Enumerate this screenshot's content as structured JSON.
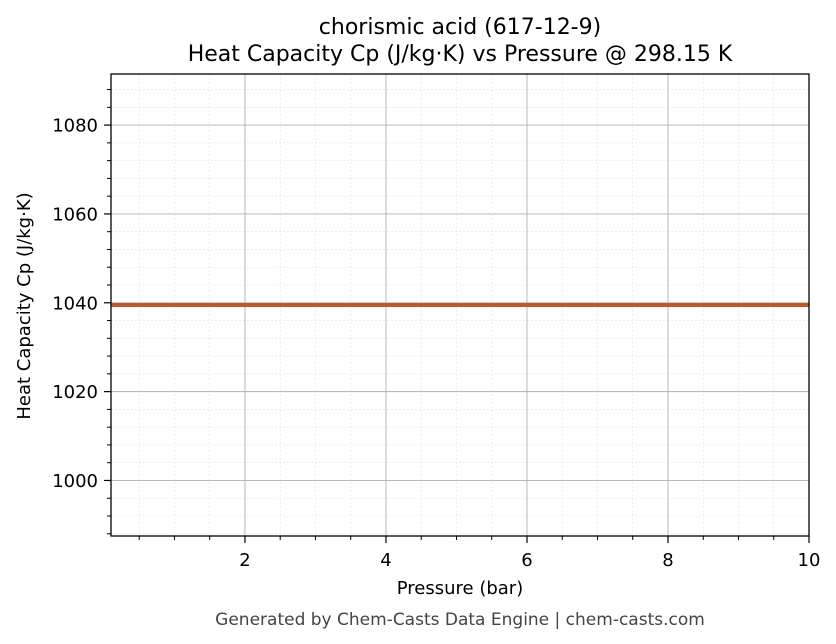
{
  "chart_data": {
    "type": "line",
    "title": "chorismic acid (617-12-9)",
    "subtitle": "Heat Capacity Cp (J/kg·K) vs Pressure @ 298.15 K",
    "xlabel": "Pressure (bar)",
    "ylabel": "Heat Capacity Cp (J/kg·K)",
    "xlim": [
      0.1,
      10
    ],
    "ylim": [
      987.5,
      1091.5
    ],
    "xticks": [
      2,
      4,
      6,
      8,
      10
    ],
    "yticks": [
      1000,
      1020,
      1040,
      1060,
      1080
    ],
    "grid": true,
    "series": [
      {
        "color": "#c0562b",
        "x": [
          0.1,
          1,
          2,
          3,
          4,
          5,
          6,
          7,
          8,
          9,
          10
        ],
        "y": [
          1039.5,
          1039.5,
          1039.5,
          1039.5,
          1039.5,
          1039.5,
          1039.5,
          1039.5,
          1039.5,
          1039.5,
          1039.5
        ]
      }
    ]
  },
  "footer": "Generated by Chem-Casts Data Engine | chem-casts.com"
}
